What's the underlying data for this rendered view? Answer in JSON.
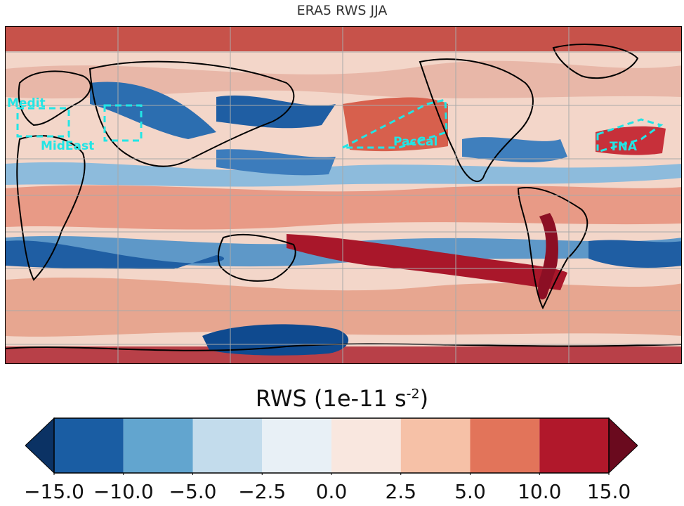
{
  "title": "ERA5 RWS JJA",
  "colorbar": {
    "label_main": "RWS (1e-11 s",
    "label_exp": "-2",
    "label_close": ")",
    "ticks": [
      "−15.0",
      "−10.0",
      "−5.0",
      "−2.5",
      "0.0",
      "2.5",
      "5.0",
      "10.0",
      "15.0"
    ],
    "colors": [
      "#1a5da3",
      "#62a5cf",
      "#c3dcec",
      "#e8f0f6",
      "#f9e7df",
      "#f6c1a7",
      "#e2745a",
      "#b1182b"
    ],
    "under_color": "#0b3264",
    "over_color": "#6a0a1e"
  },
  "regions": [
    {
      "name": "Medit",
      "color": "#22e5e5"
    },
    {
      "name": "MidEast",
      "color": "#22e5e5"
    },
    {
      "name": "PacCal",
      "color": "#22e5e5"
    },
    {
      "name": "TNA",
      "color": "#22e5e5"
    }
  ]
}
